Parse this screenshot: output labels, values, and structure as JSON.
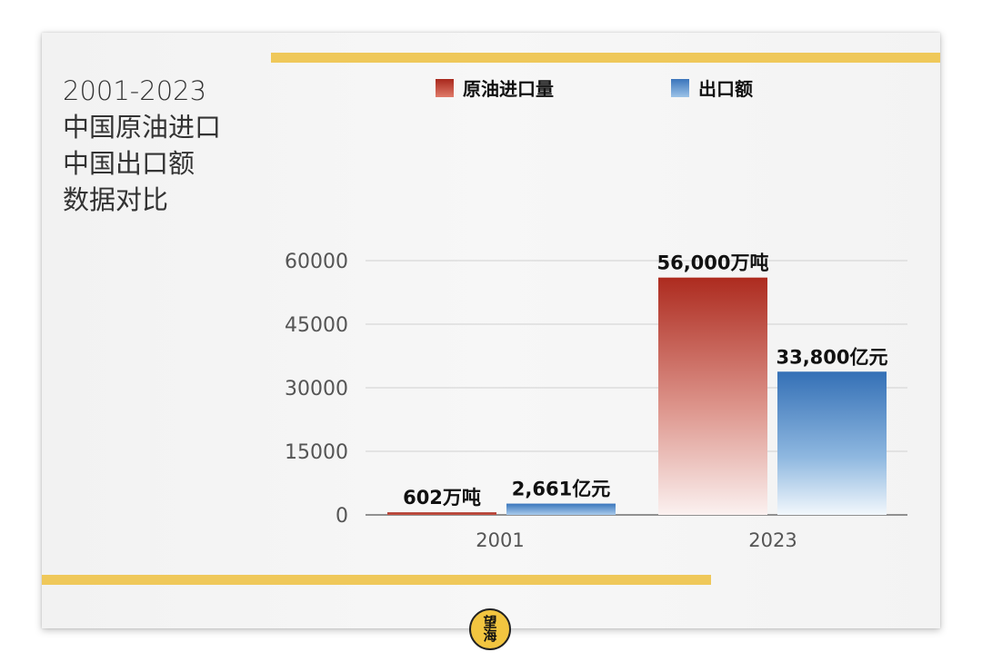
{
  "title_lines": [
    "2001-2023",
    "中国原油进口",
    "中国出口额",
    "数据对比"
  ],
  "legend": [
    {
      "label": "原油进口量",
      "color": "#b73a2e"
    },
    {
      "label": "出口额",
      "color": "#3d78bd"
    }
  ],
  "colors": {
    "band": "#efc85a",
    "red": "#b02a1d",
    "blue": "#3773b9"
  },
  "seal_chars": [
    "望",
    "海"
  ],
  "chart_data": {
    "type": "bar",
    "categories": [
      "2001",
      "2023"
    ],
    "series": [
      {
        "name": "原油进口量",
        "values": [
          602,
          56000
        ],
        "labels": [
          "602万吨",
          "56,000万吨"
        ]
      },
      {
        "name": "出口额",
        "values": [
          2661,
          33800
        ],
        "labels": [
          "2,661亿元",
          "33,800亿元"
        ]
      }
    ],
    "yticks": [
      "0",
      "15000",
      "30000",
      "45000",
      "60000"
    ],
    "ylim": [
      0,
      60000
    ],
    "grid": true,
    "legend_position": "top"
  }
}
